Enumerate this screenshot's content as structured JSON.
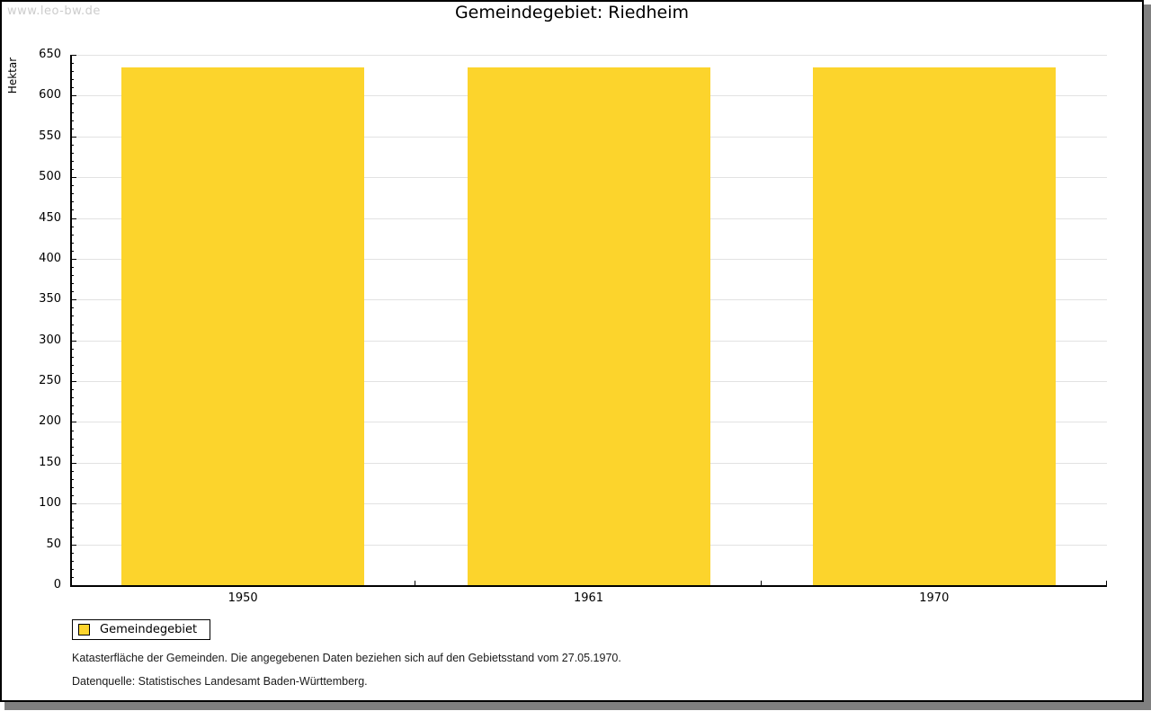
{
  "page": {
    "watermark": "www.leo-bw.de",
    "title": "Gemeindegebiet: Riedheim"
  },
  "chart_data": {
    "type": "bar",
    "title": "Gemeindegebiet: Riedheim",
    "ylabel": "Hektar",
    "xlabel": "",
    "categories": [
      "1950",
      "1961",
      "1970"
    ],
    "series": [
      {
        "name": "Gemeindegebiet",
        "color": "#FCD42C",
        "values": [
          635,
          635,
          635
        ]
      }
    ],
    "ylim": [
      0,
      650
    ],
    "y_tick_step": 50,
    "y_minor_tick_step": 10,
    "grid": "horizontal major gridlines",
    "legend_position": "bottom-left"
  },
  "legend": {
    "items": [
      {
        "label": "Gemeindegebiet",
        "color": "#FCD42C"
      }
    ]
  },
  "footnotes": {
    "line1": "Katasterfläche der Gemeinden. Die angegebenen Daten beziehen sich auf den Gebietsstand vom 27.05.1970.",
    "line2": "Datenquelle: Statistisches Landesamt Baden-Württemberg."
  },
  "colors": {
    "bar": "#FCD42C",
    "gridline": "#E2E2E2",
    "axis": "#000000",
    "watermark": "#CCCCCC",
    "page_shadow": "#808080"
  }
}
